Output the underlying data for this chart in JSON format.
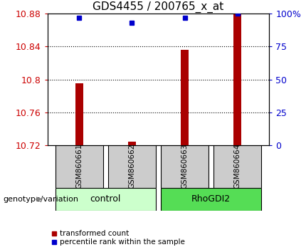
{
  "title": "GDS4455 / 200765_x_at",
  "samples": [
    "GSM860661",
    "GSM860662",
    "GSM860663",
    "GSM860664"
  ],
  "red_bar_values": [
    10.795,
    10.724,
    10.836,
    10.882
  ],
  "blue_dot_values": [
    97,
    93,
    97,
    100
  ],
  "ylim_left": [
    10.72,
    10.88
  ],
  "ylim_right": [
    0,
    100
  ],
  "yticks_left": [
    10.72,
    10.76,
    10.8,
    10.84,
    10.88
  ],
  "yticks_right": [
    0,
    25,
    50,
    75,
    100
  ],
  "ytick_labels_right": [
    "0",
    "25",
    "50",
    "75",
    "100%"
  ],
  "bar_color": "#aa0000",
  "dot_color": "#0000cc",
  "plot_bg_color": "#ffffff",
  "sample_box_color": "#cccccc",
  "control_group_color": "#ccffcc",
  "rhodgi2_group_color": "#55dd55",
  "legend_red_label": "transformed count",
  "legend_blue_label": "percentile rank within the sample",
  "genotype_label": "genotype/variation",
  "ylabel_left_color": "#cc0000",
  "ylabel_right_color": "#0000cc",
  "title_fontsize": 11,
  "tick_fontsize": 9,
  "sample_fontsize": 7.5,
  "group_fontsize": 9,
  "legend_fontsize": 7.5,
  "genotype_fontsize": 8
}
